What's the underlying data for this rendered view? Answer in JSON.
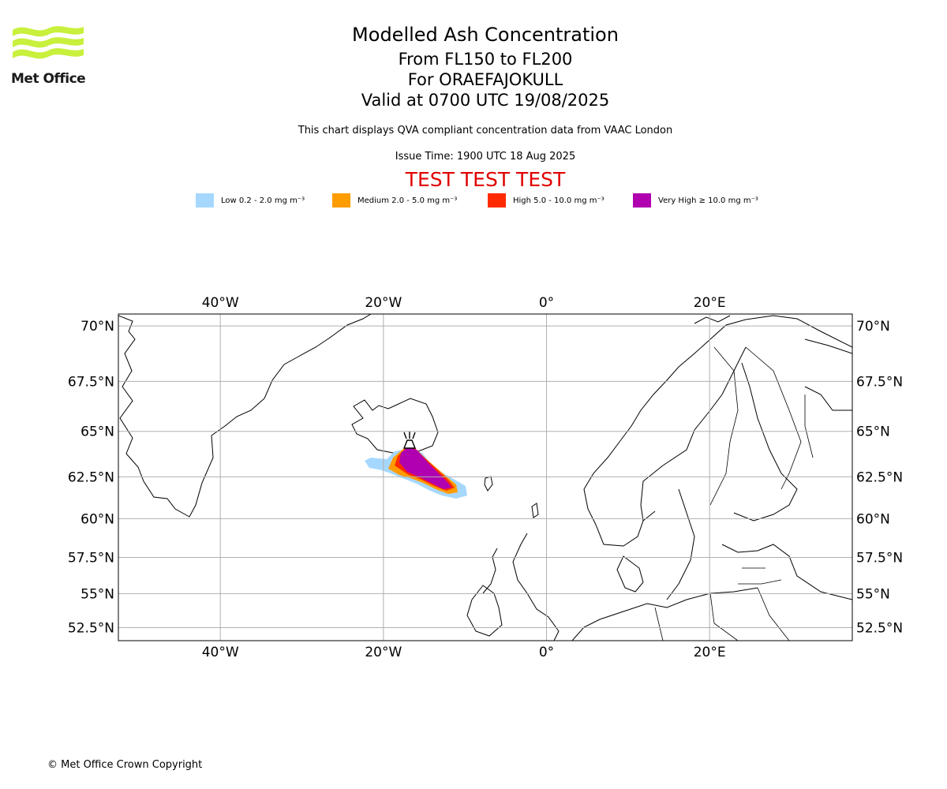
{
  "logo": {
    "text": "Met Office",
    "color": "#c8f03c"
  },
  "title": {
    "main": "Modelled Ash Concentration",
    "levels": "From FL150 to FL200",
    "volcano": "For ORAEFAJOKULL",
    "valid": "Valid at 0700 UTC 19/08/2025"
  },
  "subtitle": "This chart displays QVA compliant concentration data from VAAC London",
  "issue_time": "Issue Time: 1900 UTC 18 Aug 2025",
  "test_banner": "TEST TEST TEST",
  "legend": [
    {
      "label": "Low 0.2 - 2.0 mg m⁻³",
      "color": "#a6d8ff"
    },
    {
      "label": "Medium 2.0 - 5.0 mg m⁻³",
      "color": "#ff9c00"
    },
    {
      "label": "High 5.0 - 10.0 mg m⁻³",
      "color": "#ff2a00"
    },
    {
      "label": "Very High ≥ 10.0 mg m⁻³",
      "color": "#b000b0"
    }
  ],
  "map": {
    "lon_ticks": [
      {
        "lon": -40,
        "label": "40°W"
      },
      {
        "lon": -20,
        "label": "20°W"
      },
      {
        "lon": 0,
        "label": "0°"
      },
      {
        "lon": 20,
        "label": "20°E"
      }
    ],
    "lat_ticks": [
      {
        "lat": 70,
        "label": "70°N"
      },
      {
        "lat": 67.5,
        "label": "67.5°N"
      },
      {
        "lat": 65,
        "label": "65°N"
      },
      {
        "lat": 62.5,
        "label": "62.5°N"
      },
      {
        "lat": 60,
        "label": "60°N"
      },
      {
        "lat": 57.5,
        "label": "57.5°N"
      },
      {
        "lat": 55,
        "label": "55°N"
      },
      {
        "lat": 52.5,
        "label": "52.5°N"
      }
    ],
    "extent": {
      "lon": [
        -52.5,
        37.5
      ],
      "lat": [
        51.5,
        70.5
      ]
    },
    "volcano_location": {
      "lat": 64.0,
      "lon": -16.6
    }
  },
  "copyright": "© Met Office Crown Copyright"
}
